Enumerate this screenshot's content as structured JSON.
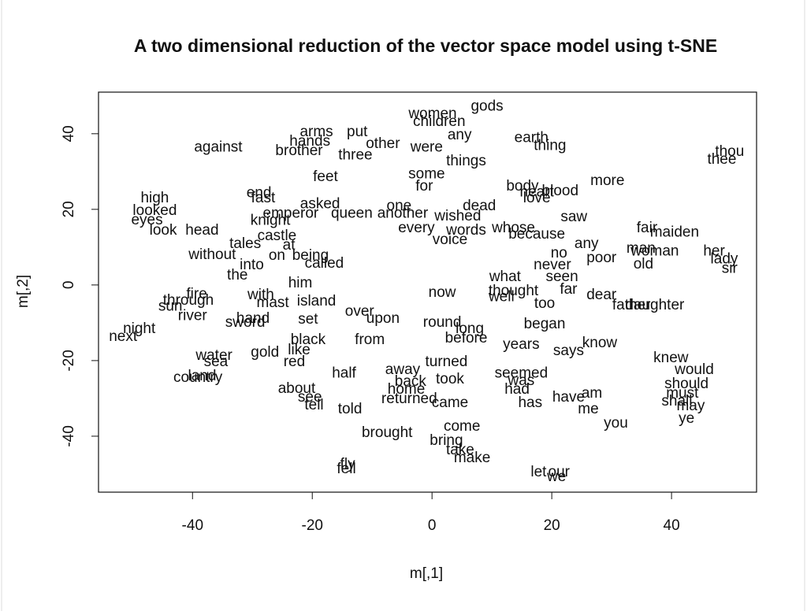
{
  "chart_data": {
    "type": "text-scatter",
    "title": "A two dimensional reduction of the vector space model using t-SNE",
    "x_label": "m[,1]",
    "y_label": "m[,2]",
    "xlim": [
      -55.7,
      54.2
    ],
    "ylim": [
      -54.8,
      51.0
    ],
    "xticks": [
      -40,
      -20,
      0,
      20,
      40
    ],
    "yticks": [
      -40,
      -20,
      0,
      20,
      40
    ],
    "color": "#111111",
    "labels": [
      "gods",
      "women",
      "children",
      "any",
      "arms",
      "put",
      "hands",
      "against",
      "brother",
      "other",
      "three",
      "were",
      "things",
      "earth",
      "thing",
      "thou",
      "thee",
      "feet",
      "some",
      "for",
      "more",
      "end",
      "fast",
      "high",
      "asked",
      "one",
      "love",
      "looked",
      "emperor",
      "queen",
      "another",
      "saw",
      "eyes",
      "look",
      "head",
      "knight",
      "every",
      "fair",
      "maiden",
      "castle",
      "tales",
      "without",
      "at",
      "on",
      "being",
      "no",
      "any",
      "man",
      "woman",
      "her",
      "lady",
      "sir",
      "old",
      "poor",
      "the",
      "called",
      "what",
      "seen",
      "far",
      "fire",
      "through",
      "sun",
      "river",
      "mast",
      "island",
      "well",
      "thought",
      "dear",
      "father",
      "daughter",
      "too",
      "hand",
      "sword",
      "set",
      "night",
      "next",
      "began",
      "black",
      "water",
      "sea",
      "gold",
      "like",
      "red",
      "years",
      "says",
      "know",
      "knew",
      "would",
      "should",
      "must",
      "shall",
      "may",
      "ye",
      "land",
      "country",
      "half",
      "away",
      "turned",
      "seemed",
      "was",
      "back",
      "took",
      "home",
      "had",
      "about",
      "see",
      "tell",
      "told",
      "returned",
      "came",
      "has",
      "have",
      "am",
      "me",
      "you",
      "come",
      "brought",
      "bring",
      "take",
      "make",
      "fly",
      "fell",
      "let",
      "our",
      "we",
      "heart",
      "body",
      "blood",
      "dead",
      "wished",
      "whose",
      "because",
      "voice",
      "words",
      "never",
      "before",
      "from",
      "over",
      "round",
      "long",
      "with",
      "into",
      "now",
      "him",
      "upon"
    ],
    "x": [
      9.2,
      0.1,
      1.2,
      4.6,
      -19.3,
      -12.5,
      -20.4,
      -35.7,
      -22.2,
      -8.2,
      -12.8,
      -0.9,
      5.7,
      16.6,
      19.7,
      49.7,
      48.4,
      -17.8,
      -0.9,
      -1.3,
      29.3,
      -28.9,
      -28.2,
      -46.3,
      -18.7,
      -5.5,
      17.5,
      -46.3,
      -23.6,
      -13.4,
      -4.9,
      23.7,
      -47.6,
      -44.9,
      -38.4,
      -27.0,
      -2.6,
      35.9,
      40.5,
      -25.9,
      -31.2,
      -36.7,
      -23.9,
      -25.9,
      -20.3,
      21.2,
      25.8,
      34.9,
      37.2,
      47.1,
      48.8,
      49.7,
      35.3,
      28.3,
      -32.5,
      -18.0,
      12.2,
      21.7,
      22.8,
      -39.3,
      -40.7,
      -43.7,
      -40.0,
      -26.6,
      -19.3,
      11.6,
      13.6,
      28.3,
      33.3,
      37.2,
      18.8,
      -29.9,
      -31.2,
      -20.7,
      -48.9,
      -51.6,
      18.8,
      -20.7,
      -36.4,
      -36.1,
      -27.9,
      -22.2,
      -23.0,
      14.9,
      22.8,
      28.0,
      39.9,
      43.8,
      42.5,
      41.8,
      40.9,
      43.2,
      42.5,
      -38.4,
      -39.1,
      -14.7,
      -4.9,
      2.4,
      14.9,
      14.9,
      -3.6,
      3.0,
      -4.3,
      14.2,
      -22.6,
      -20.4,
      -19.7,
      -13.7,
      -3.8,
      3.0,
      16.4,
      22.8,
      26.7,
      26.1,
      30.7,
      5.0,
      -7.5,
      2.4,
      4.7,
      6.7,
      -14.1,
      -14.3,
      17.8,
      21.2,
      20.8,
      17.5,
      15.1,
      21.4,
      7.9,
      4.3,
      13.6,
      17.5,
      3.0,
      5.7,
      20.1,
      5.7,
      -10.4,
      -12.1,
      1.7,
      6.3,
      -28.6,
      -30.1,
      1.7,
      -22.0,
      -8.2
    ],
    "y": [
      47.1,
      45.2,
      43.1,
      39.6,
      40.4,
      40.4,
      37.9,
      36.3,
      35.4,
      37.3,
      34.2,
      36.3,
      32.7,
      38.8,
      36.7,
      35.2,
      33.1,
      28.5,
      29.2,
      26.0,
      27.5,
      24.2,
      22.9,
      22.9,
      21.3,
      20.8,
      22.9,
      19.6,
      18.8,
      18.8,
      18.8,
      17.9,
      17.1,
      14.4,
      14.4,
      16.9,
      15.0,
      15.0,
      13.8,
      12.9,
      10.8,
      7.9,
      10.4,
      7.7,
      7.7,
      8.3,
      10.8,
      9.6,
      8.8,
      8.8,
      6.7,
      4.2,
      5.4,
      7.1,
      2.5,
      5.6,
      2.1,
      2.1,
      -1.3,
      -2.5,
      -4.2,
      -5.8,
      -8.3,
      -4.8,
      -4.4,
      -3.3,
      -1.7,
      -2.7,
      -5.4,
      -5.4,
      -5.0,
      -9.0,
      -10.0,
      -9.2,
      -11.7,
      -13.8,
      -10.4,
      -14.6,
      -18.8,
      -20.4,
      -17.9,
      -17.3,
      -20.4,
      -15.8,
      -17.5,
      -15.4,
      -19.4,
      -22.5,
      -26.3,
      -28.8,
      -30.8,
      -32.1,
      -35.4,
      -24.2,
      -24.6,
      -23.5,
      -22.5,
      -20.4,
      -23.5,
      -25.4,
      -25.6,
      -25.0,
      -27.7,
      -27.7,
      -27.5,
      -29.8,
      -31.9,
      -32.9,
      -30.2,
      -31.3,
      -31.3,
      -29.8,
      -28.8,
      -32.9,
      -36.7,
      -37.5,
      -39.2,
      -41.3,
      -43.8,
      -45.8,
      -47.5,
      -48.8,
      -49.6,
      -49.6,
      -50.8,
      24.4,
      26.0,
      24.8,
      20.8,
      18.1,
      15.0,
      13.3,
      11.9,
      14.4,
      5.2,
      -14.2,
      -14.6,
      -7.1,
      -10.0,
      -11.7,
      -2.7,
      5.2,
      -2.1,
      0.4,
      -9.0
    ]
  }
}
